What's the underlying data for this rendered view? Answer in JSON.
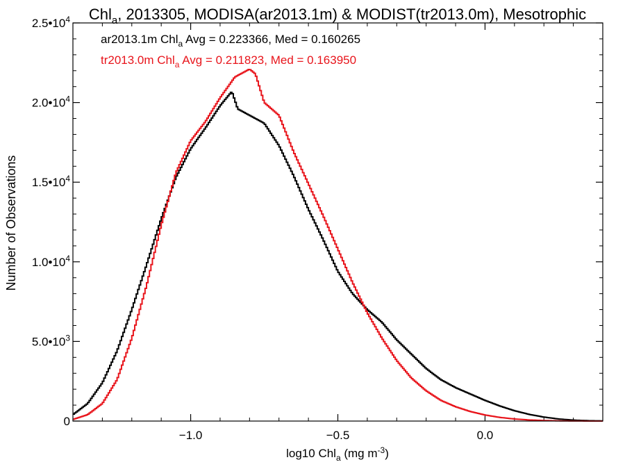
{
  "chart_data": {
    "type": "line",
    "title": "Chl<sub>a</sub>, 2013305, MODISA(ar2013.1m) & MODIST(tr2013.0m), Mesotrophic",
    "title_parts": {
      "a": "Chl",
      "b": "a",
      "c": ", 2013305, MODISA(ar2013.1m) & MODIST(tr2013.0m), Mesotrophic"
    },
    "xlabel_parts": {
      "a": "log10 Chl",
      "b": "a",
      "c": " (mg m",
      "d": "-3",
      "e": ")"
    },
    "ylabel": "Number of Observations",
    "xlim": [
      -1.4,
      0.4
    ],
    "ylim": [
      0,
      25000
    ],
    "x_ticks": [
      {
        "value": -1.0,
        "label": "−1.0"
      },
      {
        "value": -0.5,
        "label": "−0.5"
      },
      {
        "value": 0.0,
        "label": "0.0"
      }
    ],
    "y_ticks": [
      {
        "value": 0,
        "mantissa": "0",
        "exp": ""
      },
      {
        "value": 5000,
        "mantissa": "5.0•10",
        "exp": "3"
      },
      {
        "value": 10000,
        "mantissa": "1.0•10",
        "exp": "4"
      },
      {
        "value": 15000,
        "mantissa": "1.5•10",
        "exp": "4"
      },
      {
        "value": 20000,
        "mantissa": "2.0•10",
        "exp": "4"
      },
      {
        "value": 25000,
        "mantissa": "2.5•10",
        "exp": "4"
      }
    ],
    "annotations": [
      {
        "a": "ar2013.1m Chl",
        "b": "a",
        "c": " Avg = 0.223366, Med = 0.160265",
        "color": "#000000"
      },
      {
        "a": "tr2013.0m Chl",
        "b": "a",
        "c": " Avg = 0.211823, Med = 0.163950",
        "color": "#e8141b"
      }
    ],
    "series": [
      {
        "color": "#000000",
        "x": [
          -1.4,
          -1.35,
          -1.3,
          -1.25,
          -1.2,
          -1.15,
          -1.1,
          -1.05,
          -1.0,
          -0.95,
          -0.9,
          -0.86,
          -0.84,
          -0.8,
          -0.75,
          -0.7,
          -0.65,
          -0.6,
          -0.55,
          -0.5,
          -0.45,
          -0.4,
          -0.35,
          -0.3,
          -0.25,
          -0.2,
          -0.15,
          -0.1,
          -0.05,
          0.0,
          0.05,
          0.1,
          0.15,
          0.2,
          0.25,
          0.3,
          0.35,
          0.4
        ],
        "values": [
          400,
          1100,
          2400,
          4400,
          7000,
          9800,
          12700,
          15300,
          17100,
          18400,
          19800,
          20700,
          19600,
          19200,
          18700,
          17300,
          15400,
          13300,
          11400,
          9400,
          8000,
          7000,
          6200,
          5100,
          4200,
          3300,
          2600,
          2100,
          1700,
          1300,
          950,
          650,
          420,
          250,
          130,
          60,
          25,
          10
        ]
      },
      {
        "color": "#e8141b",
        "x": [
          -1.4,
          -1.35,
          -1.3,
          -1.25,
          -1.2,
          -1.15,
          -1.1,
          -1.05,
          -1.0,
          -0.95,
          -0.9,
          -0.85,
          -0.8,
          -0.78,
          -0.75,
          -0.7,
          -0.65,
          -0.6,
          -0.55,
          -0.5,
          -0.45,
          -0.4,
          -0.35,
          -0.3,
          -0.25,
          -0.2,
          -0.15,
          -0.1,
          -0.05,
          0.0,
          0.05,
          0.1,
          0.15,
          0.2,
          0.25,
          0.3,
          0.35,
          0.4
        ],
        "values": [
          100,
          400,
          1100,
          2600,
          5200,
          8500,
          12300,
          15600,
          17600,
          18800,
          20300,
          21600,
          22100,
          21800,
          20000,
          19200,
          16900,
          14900,
          12900,
          10800,
          8700,
          6800,
          5200,
          3800,
          2700,
          1900,
          1300,
          900,
          600,
          380,
          230,
          130,
          70,
          35,
          15,
          5,
          2,
          0
        ]
      }
    ]
  }
}
